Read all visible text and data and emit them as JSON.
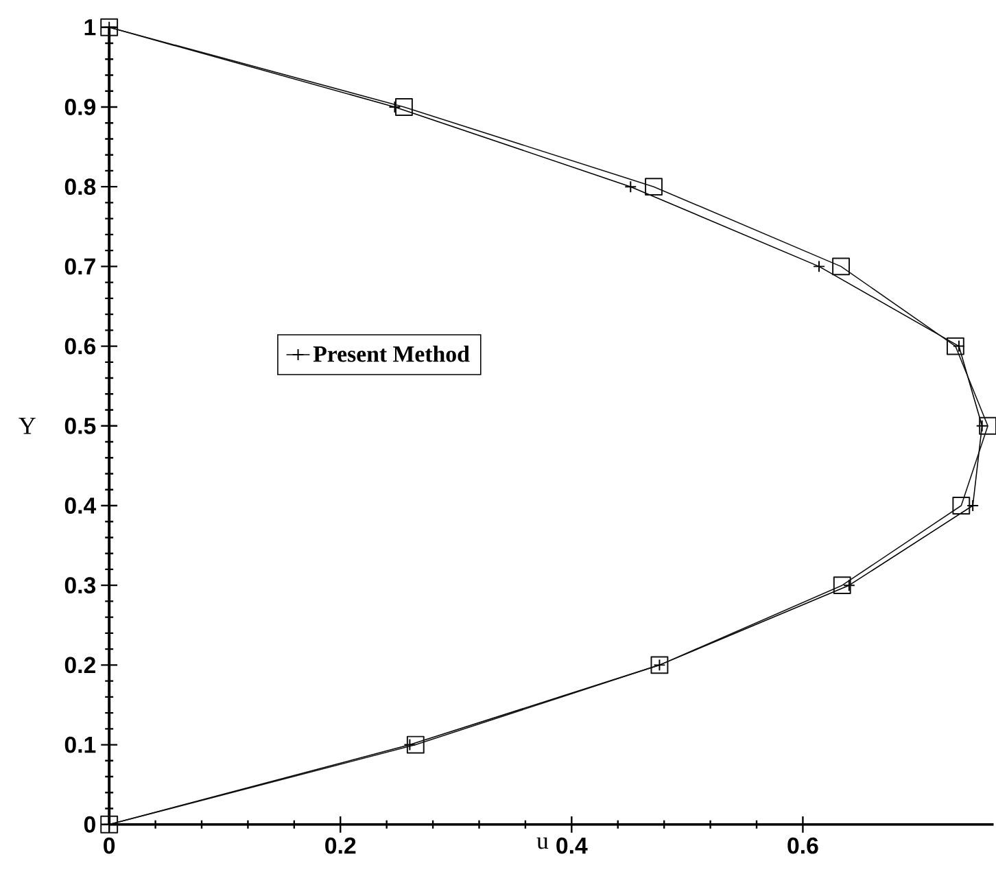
{
  "chart_data": {
    "type": "line",
    "xlabel": "u",
    "ylabel": "Y",
    "xlim": [
      0,
      0.765
    ],
    "ylim": [
      0,
      1
    ],
    "xticks": [
      0,
      0.2,
      0.4,
      0.6
    ],
    "yticks": [
      0,
      0.1,
      0.2,
      0.3,
      0.4,
      0.5,
      0.6,
      0.7,
      0.8,
      0.9,
      1
    ],
    "grid": false,
    "legend": "left",
    "series": [
      {
        "name": "Present Method",
        "color": "#000000",
        "marker": "cross",
        "x": [
          0,
          0.26,
          0.476,
          0.64,
          0.747,
          0.755,
          0.735,
          0.614,
          0.451,
          0.247,
          0
        ],
        "values": [
          0,
          0.1,
          0.2,
          0.3,
          0.4,
          0.5,
          0.6,
          0.7,
          0.8,
          0.9,
          1
        ]
      },
      {
        "color": "#111111",
        "marker": "square",
        "x": [
          0,
          0.265,
          0.476,
          0.634,
          0.737,
          0.76,
          0.732,
          0.633,
          0.471,
          0.255,
          0
        ],
        "values": [
          0,
          0.1,
          0.2,
          0.3,
          0.4,
          0.5,
          0.6,
          0.7,
          0.8,
          0.9,
          1
        ]
      }
    ]
  }
}
